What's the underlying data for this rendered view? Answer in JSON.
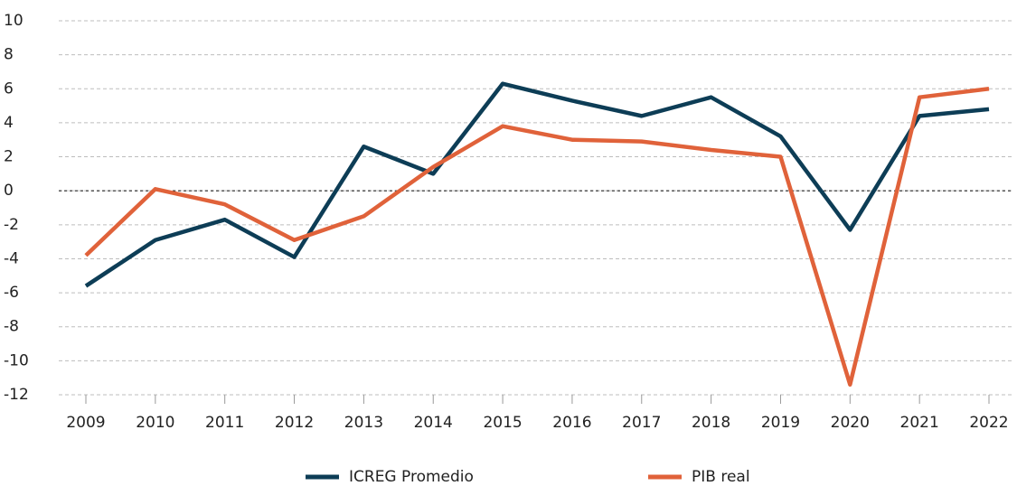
{
  "chart_data": {
    "type": "line",
    "categories": [
      "2009",
      "2010",
      "2011",
      "2012",
      "2013",
      "2014",
      "2015",
      "2016",
      "2017",
      "2018",
      "2019",
      "2020",
      "2021",
      "2022"
    ],
    "series": [
      {
        "name": "ICREG Promedio",
        "color": "#0d3d56",
        "values": [
          -5.6,
          -2.9,
          -1.7,
          -3.9,
          2.6,
          1.0,
          6.3,
          5.3,
          4.4,
          5.5,
          3.2,
          -2.3,
          4.4,
          4.8
        ]
      },
      {
        "name": "PIB real",
        "color": "#e0623a",
        "values": [
          -3.8,
          0.1,
          -0.8,
          -2.9,
          -1.5,
          1.4,
          3.8,
          3.0,
          2.9,
          2.4,
          2.0,
          -11.4,
          5.5,
          6.0
        ]
      }
    ],
    "ylim": [
      -12,
      10
    ],
    "yticks": [
      -12,
      -10,
      -8,
      -6,
      -4,
      -2,
      0,
      2,
      4,
      6,
      8,
      10
    ],
    "grid": true,
    "legend": "bottom"
  }
}
